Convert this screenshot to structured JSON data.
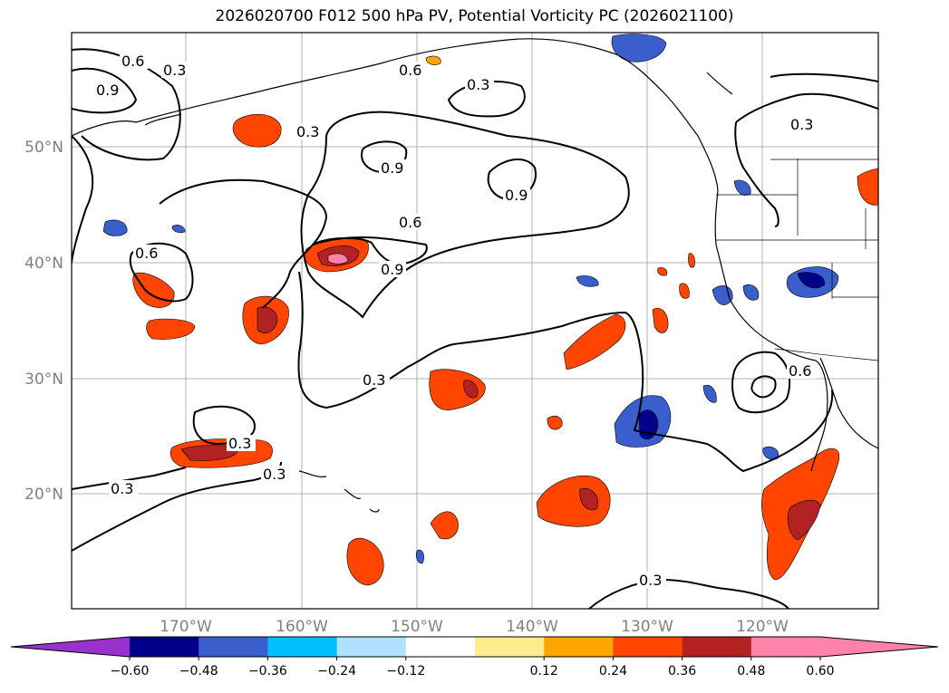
{
  "title": "2026020700 F012 500 hPa PV, Potential Vorticity PC (2026021100)",
  "lon_labels": [
    "170°W",
    "160°W",
    "150°W",
    "140°W",
    "130°W",
    "120°W"
  ],
  "lat_labels": [
    "50°N",
    "40°N",
    "30°N",
    "20°N"
  ],
  "colorbar": {
    "ticks": [
      "−0.60",
      "−0.48",
      "−0.36",
      "−0.24",
      "−0.12",
      "0.12",
      "0.24",
      "0.36",
      "0.48",
      "0.60"
    ],
    "colors": {
      "under": "#9932cc",
      "bins": [
        "#00008b",
        "#3a5fcd",
        "#00bfff",
        "#b0e2ff",
        "#ffffff",
        "#ffec8b",
        "#ffa500",
        "#ff4500",
        "#b22222",
        "#ff82ab"
      ],
      "over": "#ff82ab"
    }
  },
  "contour_labels": [
    "0.6",
    "0.3",
    "0.9",
    "0.6",
    "0.3",
    "0.3",
    "0.9",
    "0.9",
    "0.3",
    "0.6",
    "0.9",
    "0.6",
    "0.3",
    "0.3",
    "0.6",
    "0.3",
    "0.3",
    "0.3"
  ]
}
